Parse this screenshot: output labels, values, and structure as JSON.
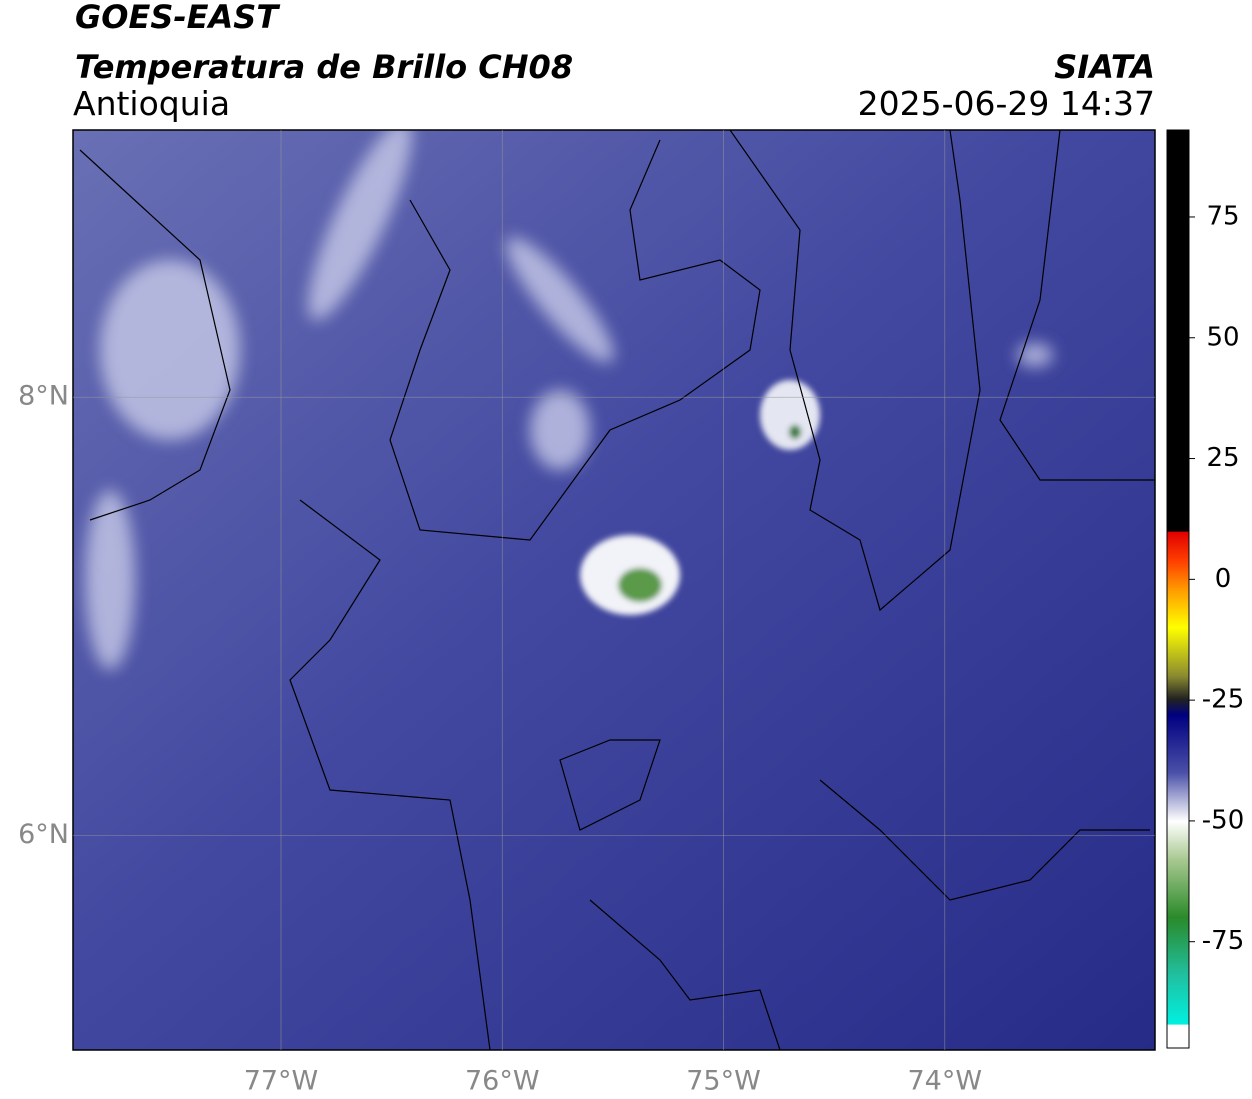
{
  "header": {
    "title": "GOES-EAST",
    "subtitle": "Temperatura de Brillo CH08",
    "region": "Antioquia",
    "source": "SIATA",
    "datetime": "2025-06-29 14:37"
  },
  "map": {
    "xlim": [
      -77.94,
      -73.05
    ],
    "ylim": [
      5.02,
      9.22
    ],
    "xticks": [
      {
        "value": -77,
        "label": "77°W"
      },
      {
        "value": -76,
        "label": "76°W"
      },
      {
        "value": -75,
        "label": "75°W"
      },
      {
        "value": -74,
        "label": "74°W"
      }
    ],
    "yticks": [
      {
        "value": 8,
        "label": "8°N"
      },
      {
        "value": 6,
        "label": "6°N"
      }
    ]
  },
  "colorbar": {
    "lim": [
      -97,
      93
    ],
    "ticks": [
      75,
      50,
      25,
      0,
      -25,
      -50,
      -75
    ]
  }
}
